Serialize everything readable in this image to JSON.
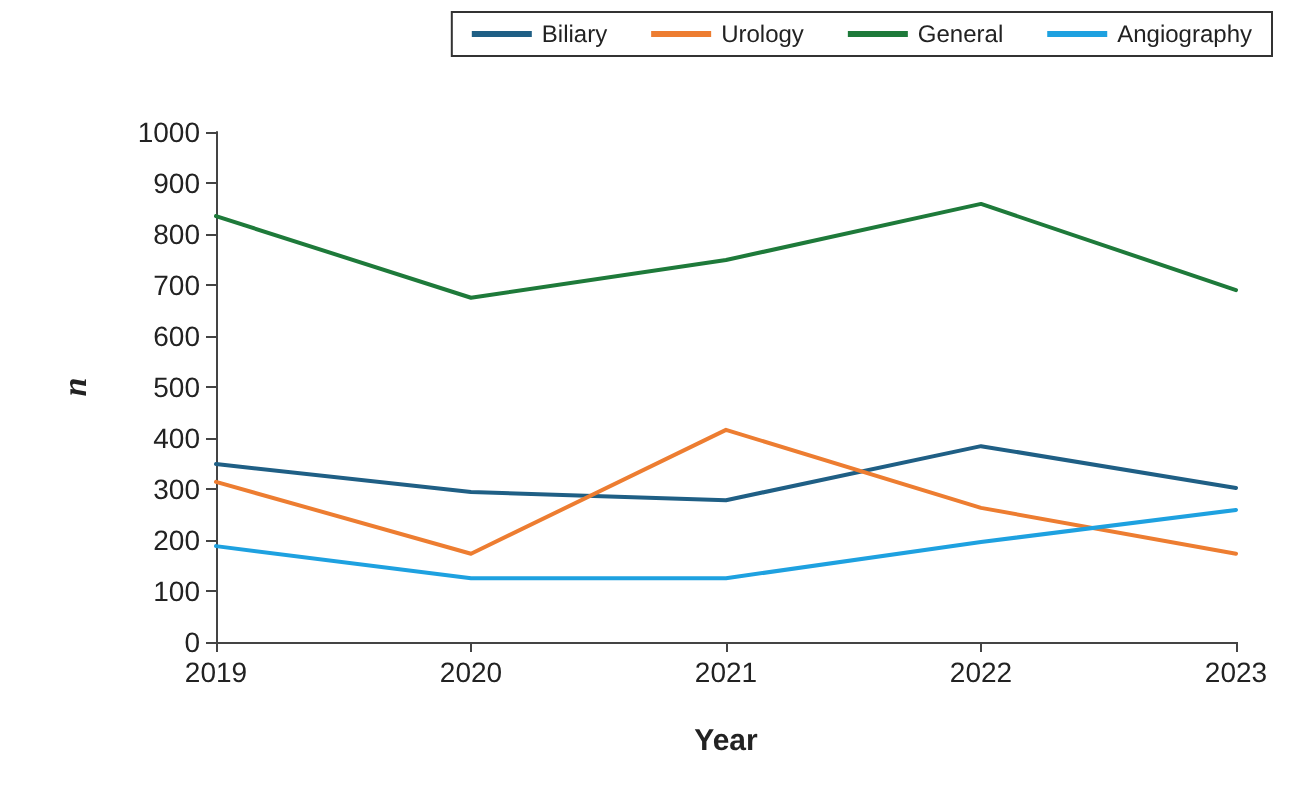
{
  "chart_data": {
    "type": "line",
    "xlabel": "Year",
    "ylabel": "n",
    "categories": [
      "2019",
      "2020",
      "2021",
      "2022",
      "2023"
    ],
    "series": [
      {
        "name": "Biliary",
        "color": "#1f5f85",
        "values": [
          349,
          294,
          278,
          384,
          302
        ]
      },
      {
        "name": "Urology",
        "color": "#ed7d31",
        "values": [
          314,
          173,
          416,
          263,
          173
        ]
      },
      {
        "name": "General",
        "color": "#1e7a3a",
        "values": [
          835,
          675,
          749,
          859,
          690
        ]
      },
      {
        "name": "Angiography",
        "color": "#1ea1e0",
        "values": [
          188,
          125,
          125,
          196,
          259
        ]
      }
    ],
    "ylim": [
      0,
      1000
    ],
    "yticks": [
      0,
      100,
      200,
      300,
      400,
      500,
      600,
      700,
      800,
      900,
      1000
    ],
    "grid": false,
    "legend": "top right",
    "marker": "none",
    "line_style": "solid"
  }
}
